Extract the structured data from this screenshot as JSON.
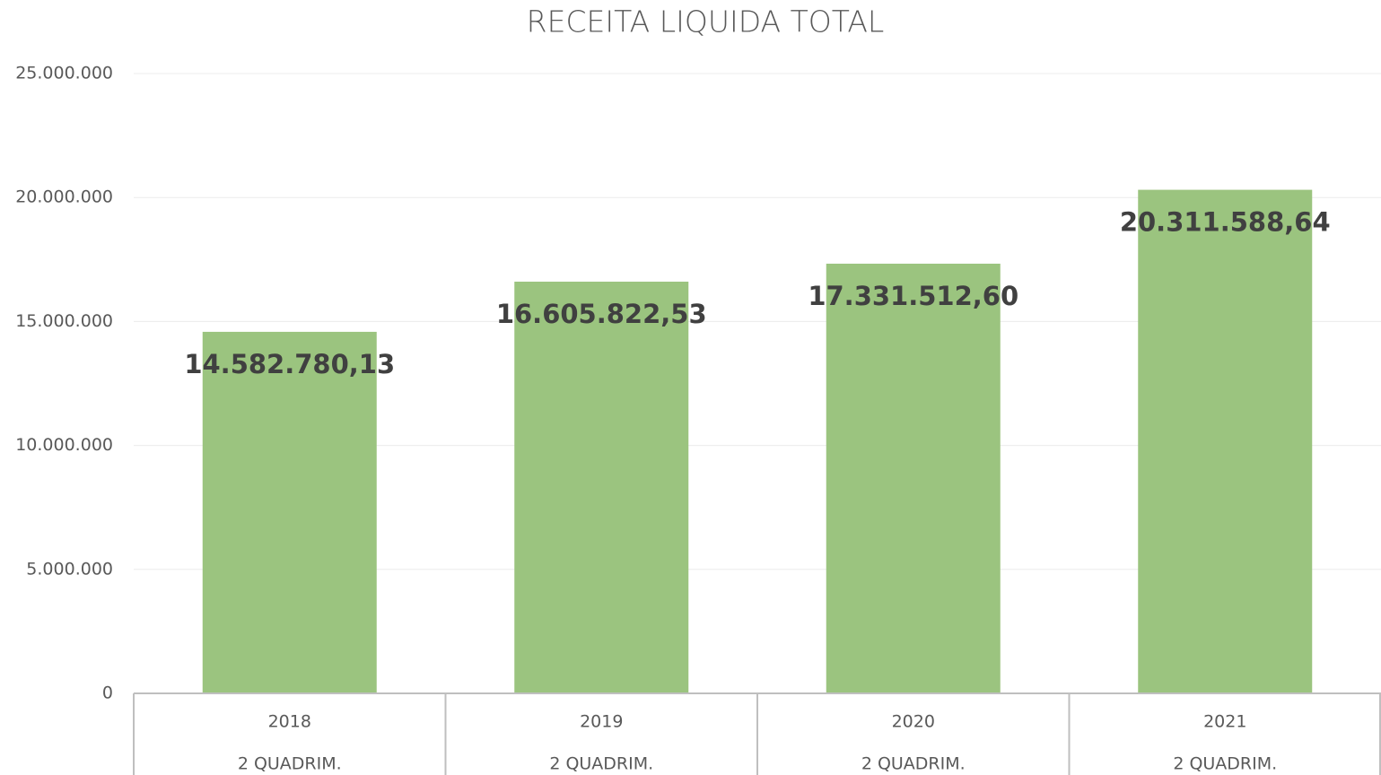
{
  "chart_data": {
    "type": "bar",
    "title": "RECEITA LIQUIDA TOTAL",
    "categories": [
      "2018",
      "2019",
      "2020",
      "2021"
    ],
    "category_groups": [
      "2 QUADRIM.",
      "2 QUADRIM.",
      "2 QUADRIM.",
      "2 QUADRIM."
    ],
    "values": [
      14582780.13,
      16605822.53,
      17331512.6,
      20311588.64
    ],
    "value_labels": [
      "14.582.780,13",
      "16.605.822,53",
      "17.331.512,60",
      "20.311.588,64"
    ],
    "color": "#9bc47f",
    "ylim": [
      0,
      25000000
    ],
    "yticks": [
      0,
      {
        "value": 5000000,
        "label": "5.000.000"
      },
      {
        "value": 10000000,
        "label": "10.000.000"
      },
      {
        "value": 15000000,
        "label": "15.000.000"
      },
      {
        "value": 20000000,
        "label": "20.000.000"
      },
      {
        "value": 25000000,
        "label": "25.000.000"
      }
    ],
    "grid": true
  }
}
